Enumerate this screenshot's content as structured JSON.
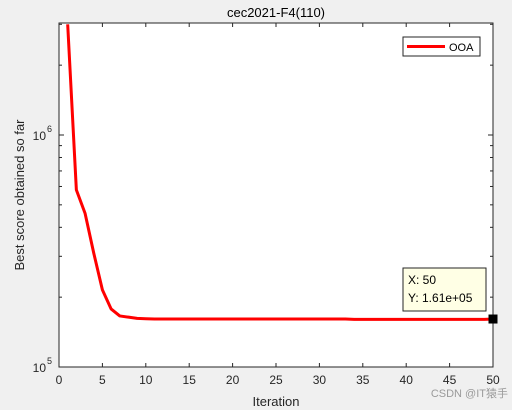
{
  "chart_data": {
    "type": "line",
    "title": "cec2021-F4(110)",
    "xlabel": "Iteration",
    "ylabel": "Best score obtained so far",
    "xlim": [
      0,
      50
    ],
    "ylim": [
      100000,
      3000000
    ],
    "y_scale": "log",
    "grid": false,
    "legend_position": "top-right",
    "x_ticks": [
      "0",
      "5",
      "10",
      "15",
      "20",
      "25",
      "30",
      "35",
      "40",
      "45",
      "50"
    ],
    "y_tick_base": "10",
    "y_ticks": [
      {
        "value": 100000,
        "exponent": "5"
      },
      {
        "value": 1000000,
        "exponent": "6"
      }
    ],
    "series": [
      {
        "name": "OOA",
        "color": "#ff0000",
        "x": [
          1,
          2,
          3,
          4,
          5,
          6,
          7,
          8,
          9,
          10,
          11,
          12,
          13,
          14,
          15,
          16,
          17,
          18,
          19,
          20,
          21,
          22,
          23,
          24,
          25,
          26,
          27,
          28,
          29,
          30,
          31,
          32,
          33,
          34,
          35,
          36,
          37,
          38,
          39,
          40,
          41,
          42,
          43,
          44,
          45,
          46,
          47,
          48,
          49,
          50
        ],
        "values": [
          3000000,
          580000,
          460000,
          310000,
          215000,
          178000,
          166000,
          164000,
          162000,
          161500,
          161000,
          161000,
          161000,
          161000,
          161000,
          161000,
          161000,
          161000,
          161000,
          161000,
          161000,
          161000,
          161000,
          161000,
          161000,
          161000,
          161000,
          161000,
          161000,
          161000,
          161000,
          161000,
          161000,
          160500,
          160500,
          160500,
          160500,
          160500,
          160500,
          160500,
          160500,
          160500,
          160500,
          160500,
          160500,
          160500,
          160500,
          160500,
          160500,
          161000
        ]
      }
    ],
    "datatip": {
      "x": 50,
      "y": 161000,
      "x_text": "X: 50",
      "y_text": "Y: 1.61e+05"
    }
  },
  "watermark": "CSDN @IT猿手"
}
